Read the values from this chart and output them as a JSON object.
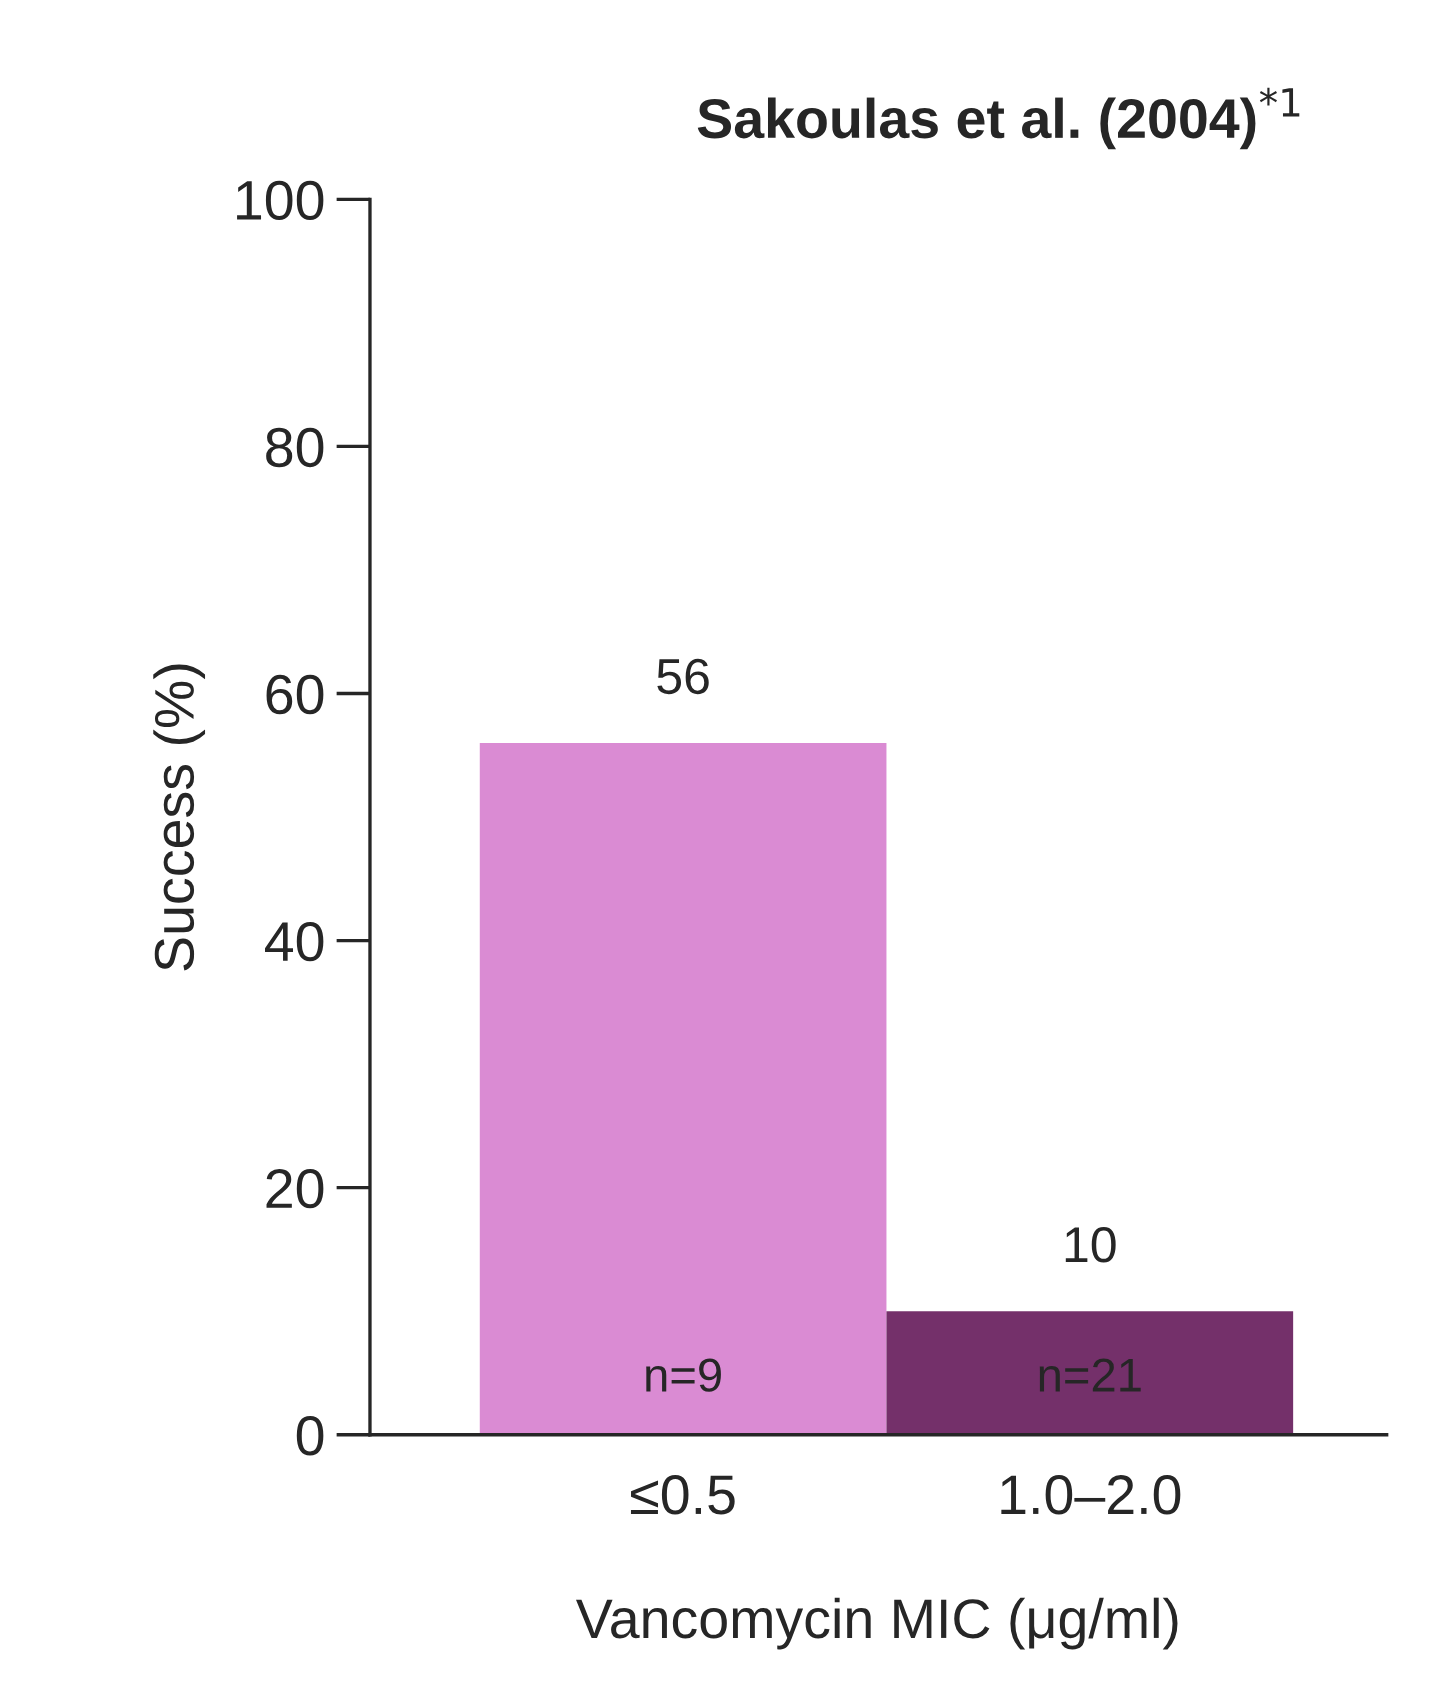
{
  "chart_data": {
    "type": "bar",
    "title": "Sakoulas et al. (2004)$^{*1}$",
    "xlabel": "Vancomycin MIC (μg/ml)",
    "ylabel": "Success (%)",
    "categories": [
      "≤0.5",
      "1.0–2.0"
    ],
    "values": [
      56,
      10
    ],
    "colors": [
      "#da8bd3",
      "#74306a"
    ],
    "ylim": [
      0,
      100
    ],
    "yticks": [
      0,
      20,
      40,
      60,
      80,
      100
    ],
    "data_labels": true,
    "grid": false,
    "annotations": [
      "n=9",
      "n=21"
    ]
  }
}
